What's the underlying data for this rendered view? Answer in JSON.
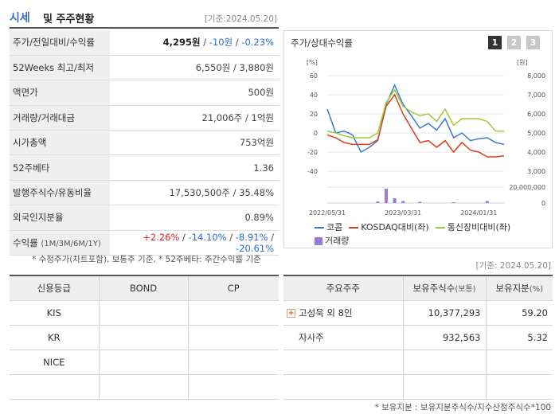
{
  "header": {
    "title_blue": "시세",
    "title_rest": "및 주주현황",
    "date": "[기준:2024.05.20]"
  },
  "info": [
    {
      "label": "주가/전일대비/수익률",
      "price": "4,295원",
      "sep1": " / ",
      "change": "-10원",
      "sep2": " / ",
      "rate": "-0.23%"
    },
    {
      "label": "52Weeks 최고/최저",
      "value": "6,550원 / 3,880원"
    },
    {
      "label": "액면가",
      "value": "500원"
    },
    {
      "label": "거래량/거래대금",
      "value": "21,006주 / 1억원"
    },
    {
      "label": "시가총액",
      "value": "753억원"
    },
    {
      "label": "52주베타",
      "value": "1.36"
    },
    {
      "label": "발행주식수/유동비율",
      "value": "17,530,500주 / 35.48%"
    },
    {
      "label": "외국인지분율",
      "value": "0.89%"
    },
    {
      "label": "수익률",
      "label_sub": "(1M/3M/6M/1Y)",
      "r1": "+2.26%",
      "r2": "-14.10%",
      "r3": "-8.91%",
      "r4": "-20.61%"
    }
  ],
  "notes": {
    "left": "* 수정주가(차트포함), 보통주 기준, * 52주베타: 주간수익률 기준",
    "right": "[기준: 2024.05.20]",
    "bottom": "* 보유지분 : 보유지분주식수/지수산정주식수*100"
  },
  "chart": {
    "title": "주가/상대수익률",
    "pages": [
      "1",
      "2",
      "3"
    ],
    "left_unit": "[%]",
    "right_unit": "[원]",
    "left_ticks": [
      "60",
      "40",
      "20",
      "0",
      "-20",
      "-40"
    ],
    "right_ticks": [
      "8,000",
      "7,000",
      "6,000",
      "5,000",
      "4,000",
      "3,000"
    ],
    "volume_ticks": [
      "20,000,000",
      "0"
    ],
    "x_ticks": [
      "2022/05/31",
      "2023/03/31",
      "2024/01/31"
    ],
    "legend": [
      "코콤",
      "KOSDAQ대비(좌)",
      "통신장비대비(좌)",
      "거래량"
    ],
    "colors": {
      "stock": "#3a78d8",
      "kosdaq": "#d8401c",
      "telecom": "#9acc3a",
      "volume": "#9c7ad8"
    }
  },
  "chart_data": {
    "type": "line",
    "x_range": [
      "2022/05/31",
      "2024/05/20"
    ],
    "x_ticks": [
      "2022/05/31",
      "2023/03/31",
      "2024/01/31"
    ],
    "y_left_range": [
      -40,
      60
    ],
    "y_right_range": [
      3000,
      8000
    ],
    "series": [
      {
        "name": "코콤",
        "axis": "left",
        "values": [
          25,
          0,
          2,
          -2,
          -20,
          -15,
          -8,
          30,
          50,
          30,
          18,
          5,
          10,
          3,
          15,
          -5,
          0,
          -8,
          -6,
          -5,
          -10,
          -12
        ]
      },
      {
        "name": "KOSDAQ대비(좌)",
        "axis": "left",
        "values": [
          -2,
          -5,
          -10,
          -12,
          -12,
          -12,
          -7,
          28,
          40,
          20,
          5,
          -10,
          -8,
          -15,
          -8,
          -20,
          -10,
          -18,
          -20,
          -25,
          -25,
          -24
        ]
      },
      {
        "name": "통신장비대비(좌)",
        "axis": "left",
        "values": [
          2,
          0,
          -3,
          -5,
          -5,
          -5,
          0,
          32,
          45,
          28,
          22,
          18,
          20,
          12,
          25,
          8,
          15,
          15,
          15,
          12,
          2,
          2
        ]
      },
      {
        "name": "거래량",
        "axis": "volume",
        "type": "bar",
        "values": [
          0,
          0,
          0,
          0,
          0,
          0,
          2000000,
          18000000,
          6000000,
          2500000,
          0,
          1500000,
          0,
          0,
          0,
          1000000,
          0,
          0,
          0,
          2500000,
          0,
          0
        ]
      }
    ]
  },
  "credit": {
    "headers": [
      "신용등급",
      "BOND",
      "CP"
    ],
    "rows": [
      [
        "KIS",
        "",
        ""
      ],
      [
        "KR",
        "",
        ""
      ],
      [
        "NICE",
        "",
        ""
      ],
      [
        "",
        "",
        ""
      ]
    ]
  },
  "holders": {
    "headers": [
      "주요주주",
      "보유주식수",
      "(보통)",
      "보유지분",
      "(%)"
    ],
    "rows": [
      {
        "name": "고성욱 외 8인",
        "shares": "10,377,293",
        "pct": "59.20",
        "expand": "+"
      },
      {
        "name": "자사주",
        "shares": "932,563",
        "pct": "5.32"
      },
      {
        "name": "",
        "shares": "",
        "pct": ""
      },
      {
        "name": "",
        "shares": "",
        "pct": ""
      }
    ]
  }
}
